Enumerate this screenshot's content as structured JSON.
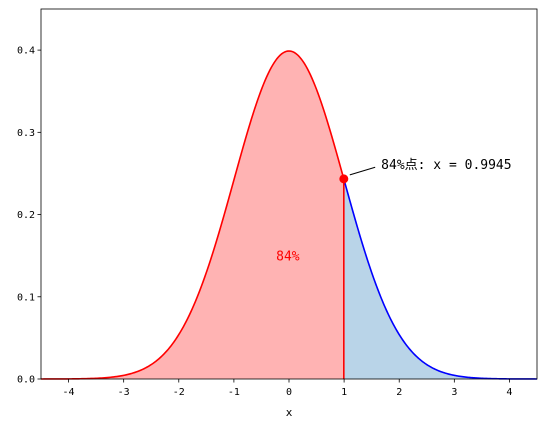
{
  "chart_data": {
    "type": "area",
    "distribution": "standard normal",
    "xlabel": "x",
    "ylabel": "",
    "xlim": [
      -4.5,
      4.5
    ],
    "ylim": [
      0,
      0.45
    ],
    "x_ticks": [
      -4,
      -3,
      -2,
      -1,
      0,
      1,
      2,
      3,
      4
    ],
    "x_tick_labels": [
      "-4",
      "-3",
      "-2",
      "-1",
      "0",
      "1",
      "2",
      "3",
      "4"
    ],
    "y_ticks": [
      0.0,
      0.1,
      0.2,
      0.3,
      0.4
    ],
    "y_tick_labels": [
      "0.0",
      "0.1",
      "0.2",
      "0.3",
      "0.4"
    ],
    "grid": false,
    "legend": "none",
    "cutoff_x": 0.9945,
    "cutoff_y": 0.2434,
    "regions": [
      {
        "from": -4.5,
        "to": 0.9945,
        "fill": "#ffb3b3",
        "line": "#ff0000"
      },
      {
        "from": 0.9945,
        "to": 4.5,
        "fill": "#b9d4e8",
        "line": "#0000ff"
      }
    ],
    "percent_label": {
      "text": "84%",
      "x": -0.02,
      "y": 0.15
    },
    "annotation": {
      "text": "84%点: x = 0.9945",
      "x": 1.6,
      "y": 0.26
    },
    "colors": {
      "left_line": "#ff0000",
      "left_fill": "#ffb3b3",
      "right_line": "#0000ff",
      "right_fill": "#b9d4e8",
      "marker": "#ff0000"
    }
  }
}
